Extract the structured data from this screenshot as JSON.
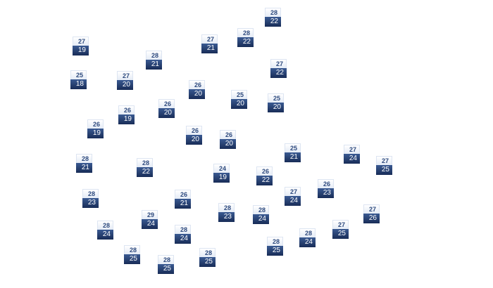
{
  "map": {
    "colors": {
      "high_bg": "#eef2fa",
      "high_text": "#2e4a7e",
      "low_bg": "#223a6b",
      "low_text": "#ffffff"
    },
    "stations": [
      {
        "high": "28",
        "low": "22"
      },
      {
        "high": "28",
        "low": "22"
      },
      {
        "high": "27",
        "low": "21"
      },
      {
        "high": "27",
        "low": "19"
      },
      {
        "high": "28",
        "low": "21"
      },
      {
        "high": "27",
        "low": "22"
      },
      {
        "high": "25",
        "low": "18"
      },
      {
        "high": "27",
        "low": "20"
      },
      {
        "high": "26",
        "low": "20"
      },
      {
        "high": "25",
        "low": "20"
      },
      {
        "high": "25",
        "low": "20"
      },
      {
        "high": "26",
        "low": "20"
      },
      {
        "high": "26",
        "low": "19"
      },
      {
        "high": "26",
        "low": "19"
      },
      {
        "high": "26",
        "low": "20"
      },
      {
        "high": "26",
        "low": "20"
      },
      {
        "high": "25",
        "low": "21"
      },
      {
        "high": "27",
        "low": "24"
      },
      {
        "high": "28",
        "low": "21"
      },
      {
        "high": "27",
        "low": "25"
      },
      {
        "high": "28",
        "low": "22"
      },
      {
        "high": "24",
        "low": "19"
      },
      {
        "high": "26",
        "low": "22"
      },
      {
        "high": "26",
        "low": "23"
      },
      {
        "high": "27",
        "low": "24"
      },
      {
        "high": "28",
        "low": "23"
      },
      {
        "high": "26",
        "low": "21"
      },
      {
        "high": "28",
        "low": "23"
      },
      {
        "high": "27",
        "low": "26"
      },
      {
        "high": "28",
        "low": "24"
      },
      {
        "high": "29",
        "low": "24"
      },
      {
        "high": "27",
        "low": "25"
      },
      {
        "high": "28",
        "low": "24"
      },
      {
        "high": "28",
        "low": "24"
      },
      {
        "high": "28",
        "low": "24"
      },
      {
        "high": "28",
        "low": "25"
      },
      {
        "high": "28",
        "low": "25"
      },
      {
        "high": "28",
        "low": "25"
      },
      {
        "high": "28",
        "low": "25"
      }
    ]
  }
}
